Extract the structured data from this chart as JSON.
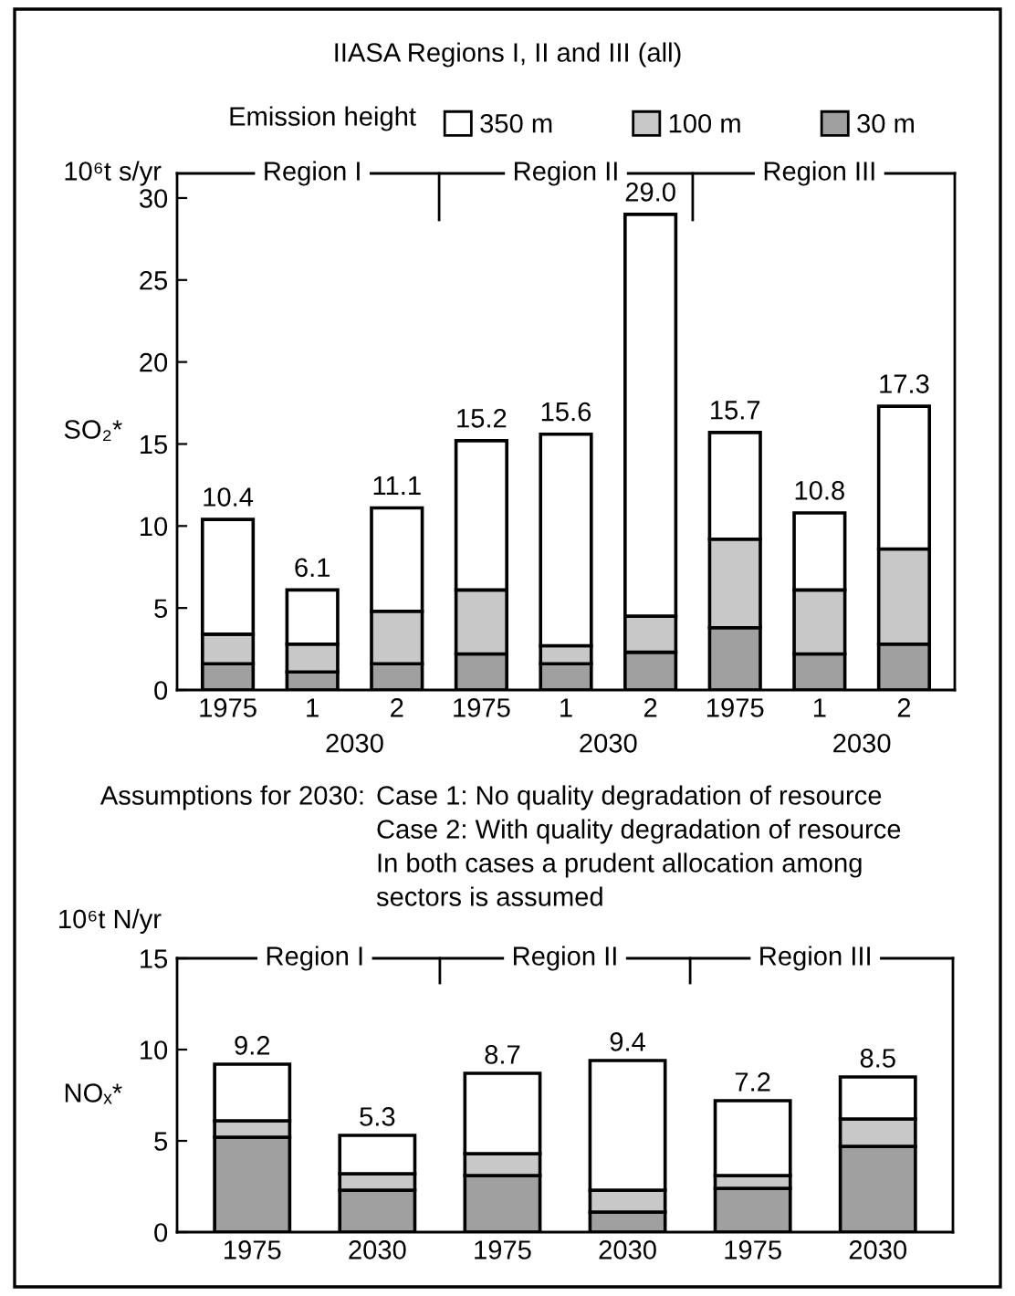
{
  "chart_data": [
    {
      "type": "bar",
      "title": "IIASA Regions I, II and III (all)",
      "ylabel": "SO₂*",
      "legend_title": "Emission height",
      "legend": "top",
      "stacked": true,
      "grid": false,
      "categories": [
        "1975",
        "1",
        "2",
        "1975",
        "1",
        "2",
        "1975",
        "1",
        "2"
      ],
      "series": [
        {
          "name": "30 m",
          "color": "#a0a0a0",
          "values": [
            1.6,
            1.1,
            1.6,
            2.2,
            1.6,
            2.3,
            3.8,
            2.2,
            2.8
          ]
        },
        {
          "name": "100 m",
          "color": "#c8c8c8",
          "values": [
            1.8,
            1.7,
            3.2,
            3.9,
            1.1,
            2.2,
            5.4,
            3.9,
            5.8
          ]
        },
        {
          "name": "350 m",
          "color": "#ffffff",
          "values": [
            7.0,
            3.3,
            6.3,
            9.1,
            12.9,
            24.5,
            6.5,
            4.7,
            8.7
          ]
        }
      ],
      "totals": [
        "10.4",
        "6.1",
        "11.1",
        "15.2",
        "15.6",
        "29.0",
        "15.7",
        "10.8",
        "17.3"
      ],
      "ylim": [
        0,
        31.5
      ],
      "yticks": [
        0,
        5,
        10,
        15,
        20,
        25,
        30
      ],
      "annotations": [
        "10⁶t s/yr",
        "Region I",
        "Region II",
        "Region III",
        "2030",
        "2030",
        "2030",
        "Assumptions for 2030:",
        "Case 1: No quality degradation of resource",
        "Case 2: With quality degradation of resource",
        "In both cases a prudent allocation among",
        "sectors is assumed"
      ]
    },
    {
      "type": "bar",
      "ylabel": "NOₓ*",
      "stacked": true,
      "grid": false,
      "legend": false,
      "categories": [
        "1975",
        "2030",
        "1975",
        "2030",
        "1975",
        "2030"
      ],
      "series": [
        {
          "color": "#a0a0a0",
          "values": [
            5.2,
            2.3,
            3.1,
            1.1,
            2.4,
            4.7
          ]
        },
        {
          "color": "#c8c8c8",
          "values": [
            0.9,
            0.9,
            1.2,
            1.2,
            0.7,
            1.5
          ]
        },
        {
          "color": "#ffffff",
          "values": [
            3.1,
            2.1,
            4.4,
            7.1,
            4.1,
            2.3
          ]
        }
      ],
      "totals": [
        "9.2",
        "5.3",
        "8.7",
        "9.4",
        "7.2",
        "8.5"
      ],
      "ylim": [
        0,
        15
      ],
      "yticks": [
        0,
        5,
        10,
        15
      ],
      "annotations": [
        "10⁶t N/yr",
        "Region I",
        "Region II",
        "Region III"
      ]
    }
  ]
}
